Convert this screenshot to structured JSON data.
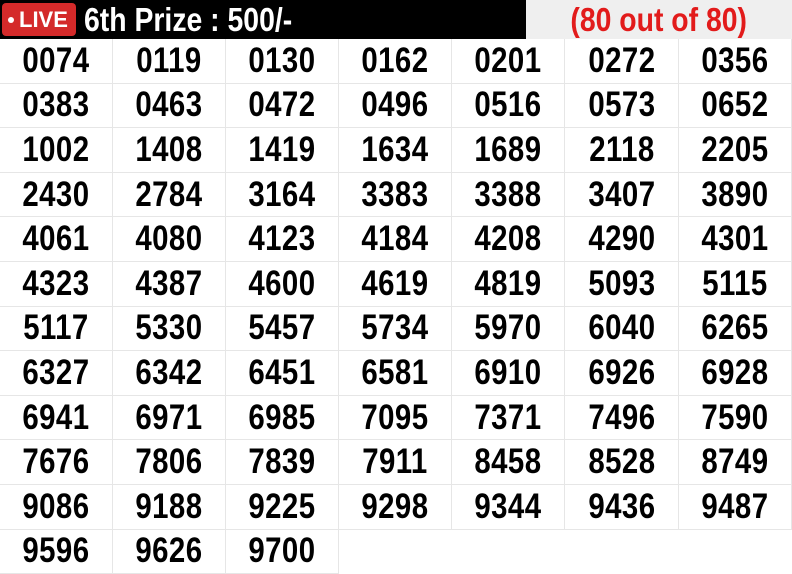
{
  "header": {
    "live_label": "LIVE",
    "title": "6th Prize : 500/-",
    "count": "(80 out of 80)",
    "live_color": "#d42a2a",
    "count_color": "#e21b1b"
  },
  "numbers": [
    "0074",
    "0119",
    "0130",
    "0162",
    "0201",
    "0272",
    "0356",
    "0383",
    "0463",
    "0472",
    "0496",
    "0516",
    "0573",
    "0652",
    "1002",
    "1408",
    "1419",
    "1634",
    "1689",
    "2118",
    "2205",
    "2430",
    "2784",
    "3164",
    "3383",
    "3388",
    "3407",
    "3890",
    "4061",
    "4080",
    "4123",
    "4184",
    "4208",
    "4290",
    "4301",
    "4323",
    "4387",
    "4600",
    "4619",
    "4819",
    "5093",
    "5115",
    "5117",
    "5330",
    "5457",
    "5734",
    "5970",
    "6040",
    "6265",
    "6327",
    "6342",
    "6451",
    "6581",
    "6910",
    "6926",
    "6928",
    "6941",
    "6971",
    "6985",
    "7095",
    "7371",
    "7496",
    "7590",
    "7676",
    "7806",
    "7839",
    "7911",
    "8458",
    "8528",
    "8749",
    "9086",
    "9188",
    "9225",
    "9298",
    "9344",
    "9436",
    "9487",
    "9596",
    "9626",
    "9700"
  ]
}
